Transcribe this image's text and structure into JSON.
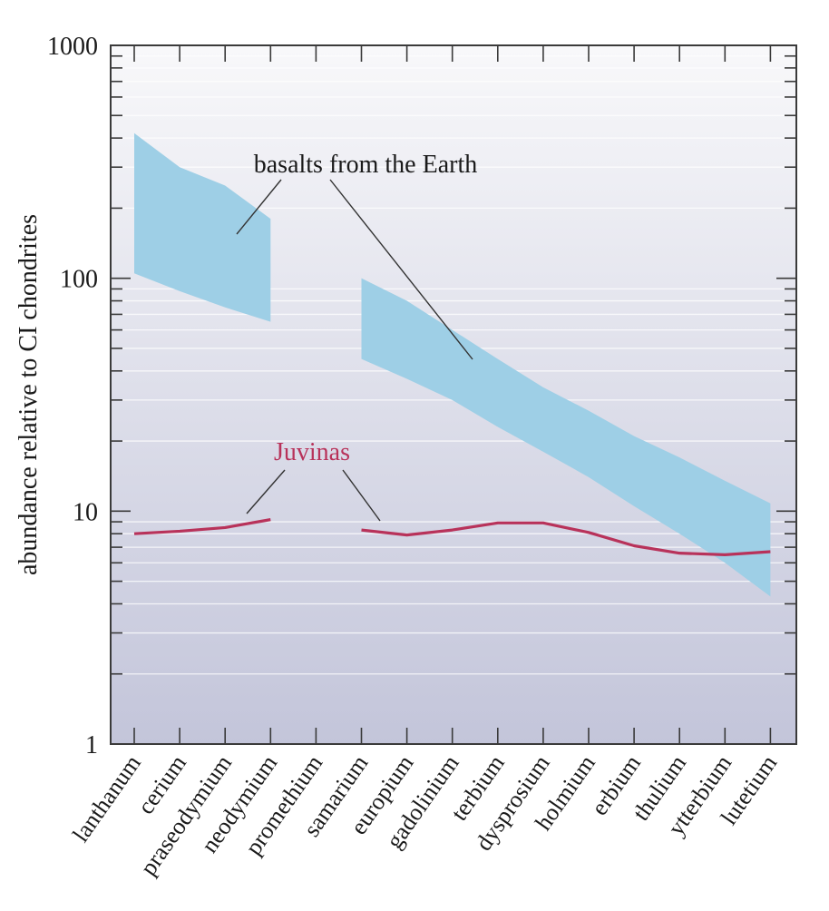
{
  "chart_data": {
    "type": "line",
    "title": "",
    "xlabel": "",
    "ylabel": "abundance relative to CI chondrites",
    "yscale": "log",
    "ylim": [
      1,
      1000
    ],
    "y_ticks": [
      "1",
      "10",
      "100",
      "1000"
    ],
    "grid": "horizontal minor lines",
    "categories": [
      "lanthanum",
      "cerium",
      "praseodymium",
      "neodymium",
      "promethium",
      "samarium",
      "europium",
      "gadolinium",
      "terbium",
      "dysprosium",
      "holmium",
      "erbium",
      "thulium",
      "ytterbium",
      "lutetium"
    ],
    "series": [
      {
        "name": "Juvinas",
        "color": "#b8325a",
        "segments": [
          [
            [
              "lanthanum",
              8.0
            ],
            [
              "cerium",
              8.2
            ],
            [
              "praseodymium",
              8.5
            ],
            [
              "neodymium",
              9.2
            ]
          ],
          [
            [
              "samarium",
              8.3
            ],
            [
              "europium",
              7.9
            ],
            [
              "gadolinium",
              8.3
            ],
            [
              "terbium",
              8.9
            ],
            [
              "dysprosium",
              8.9
            ],
            [
              "holmium",
              8.1
            ],
            [
              "erbium",
              7.1
            ],
            [
              "thulium",
              6.6
            ],
            [
              "ytterbium",
              6.5
            ],
            [
              "lutetium",
              6.7
            ]
          ]
        ]
      }
    ],
    "bands": [
      {
        "name": "basalts from the Earth",
        "color": "#9ecfe6",
        "segments": [
          {
            "x": [
              "lanthanum",
              "cerium",
              "praseodymium",
              "neodymium"
            ],
            "upper": [
              420,
              300,
              250,
              180
            ],
            "lower": [
              105,
              88,
              75,
              65
            ]
          },
          {
            "x": [
              "samarium",
              "europium",
              "gadolinium",
              "terbium",
              "dysprosium",
              "holmium",
              "erbium",
              "thulium",
              "ytterbium",
              "lutetium"
            ],
            "upper": [
              100,
              80,
              60,
              45,
              34,
              27,
              21,
              17,
              13.5,
              10.8
            ],
            "lower": [
              45,
              37,
              30,
              23,
              18,
              14,
              10.5,
              8,
              6,
              4.3
            ]
          }
        ]
      }
    ],
    "annotations": [
      {
        "text": "basalts from the Earth",
        "color": "#1a1a1a"
      },
      {
        "text": "Juvinas",
        "color": "#b8325a"
      }
    ]
  }
}
